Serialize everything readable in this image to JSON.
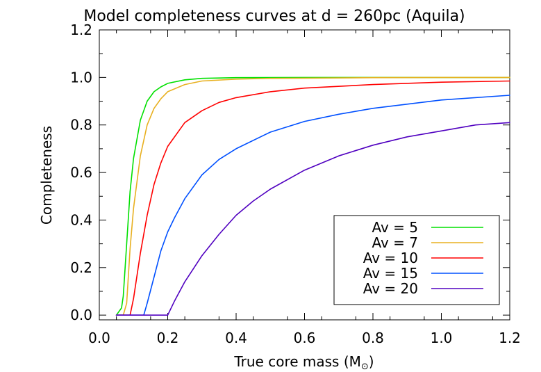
{
  "chart_data": {
    "type": "line",
    "title": "Model completeness curves at d = 260pc (Aquila)",
    "xlabel": "True core mass (M",
    "xlabel_symbol": "⊙",
    "xlabel_close": ")",
    "ylabel": "Completeness",
    "xlim": [
      0.0,
      1.2
    ],
    "ylim": [
      -0.02,
      1.2
    ],
    "x_ticks": [
      0.0,
      0.2,
      0.4,
      0.6,
      0.8,
      1.0,
      1.2
    ],
    "x_tick_labels": [
      "0.0",
      "0.2",
      "0.4",
      "0.6",
      "0.8",
      "1.0",
      "1.2"
    ],
    "y_ticks": [
      0.0,
      0.2,
      0.4,
      0.6,
      0.8,
      1.0,
      1.2
    ],
    "y_tick_labels": [
      "0.0",
      "0.2",
      "0.4",
      "0.6",
      "0.8",
      "1.0",
      "1.2"
    ],
    "grid": false,
    "legend_position": "bottom-right",
    "series": [
      {
        "name": "Av = 5",
        "color": "#00e000",
        "x": [
          0.05,
          0.065,
          0.07,
          0.08,
          0.09,
          0.1,
          0.12,
          0.14,
          0.16,
          0.18,
          0.2,
          0.25,
          0.3,
          0.4,
          0.6,
          0.8,
          1.0,
          1.2
        ],
        "y": [
          0.0,
          0.03,
          0.08,
          0.3,
          0.52,
          0.66,
          0.82,
          0.9,
          0.94,
          0.96,
          0.975,
          0.99,
          0.996,
          0.999,
          1.0,
          1.0,
          1.0,
          1.0
        ]
      },
      {
        "name": "Av = 7",
        "color": "#e8b020",
        "x": [
          0.07,
          0.08,
          0.09,
          0.1,
          0.12,
          0.14,
          0.16,
          0.18,
          0.2,
          0.25,
          0.3,
          0.4,
          0.5,
          0.6,
          0.8,
          1.0,
          1.2
        ],
        "y": [
          0.0,
          0.05,
          0.28,
          0.45,
          0.67,
          0.8,
          0.87,
          0.91,
          0.94,
          0.97,
          0.985,
          0.993,
          0.996,
          0.997,
          0.999,
          1.0,
          1.0
        ]
      },
      {
        "name": "Av = 10",
        "color": "#ff0000",
        "x": [
          0.09,
          0.1,
          0.12,
          0.14,
          0.16,
          0.18,
          0.2,
          0.25,
          0.3,
          0.35,
          0.4,
          0.5,
          0.6,
          0.8,
          1.0,
          1.2
        ],
        "y": [
          0.0,
          0.07,
          0.26,
          0.42,
          0.55,
          0.64,
          0.71,
          0.81,
          0.86,
          0.895,
          0.915,
          0.94,
          0.955,
          0.97,
          0.98,
          0.985
        ]
      },
      {
        "name": "Av = 15",
        "color": "#0050ff",
        "x": [
          0.13,
          0.14,
          0.16,
          0.18,
          0.2,
          0.22,
          0.25,
          0.3,
          0.35,
          0.4,
          0.5,
          0.6,
          0.7,
          0.8,
          1.0,
          1.2
        ],
        "y": [
          0.0,
          0.05,
          0.16,
          0.27,
          0.35,
          0.41,
          0.49,
          0.59,
          0.655,
          0.7,
          0.77,
          0.815,
          0.845,
          0.87,
          0.905,
          0.925
        ]
      },
      {
        "name": "Av = 20",
        "color": "#5000c0",
        "x": [
          0.2,
          0.22,
          0.25,
          0.3,
          0.35,
          0.4,
          0.45,
          0.5,
          0.6,
          0.7,
          0.8,
          0.9,
          1.0,
          1.1,
          1.2
        ],
        "y": [
          0.0,
          0.06,
          0.14,
          0.25,
          0.34,
          0.42,
          0.48,
          0.53,
          0.61,
          0.67,
          0.715,
          0.75,
          0.775,
          0.8,
          0.81
        ]
      }
    ]
  }
}
